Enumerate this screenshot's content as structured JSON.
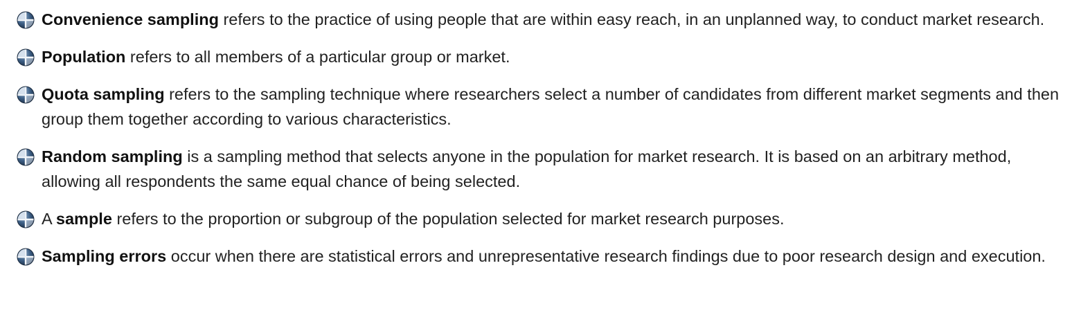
{
  "bullet_icon": "globe-bullet-icon",
  "entries": [
    {
      "prefix": "",
      "term": "Convenience sampling",
      "definition": " refers to the practice of using people that are within easy reach, in an unplanned way, to conduct market research."
    },
    {
      "prefix": "",
      "term": "Population",
      "definition": " refers to all members of a particular group or market."
    },
    {
      "prefix": "",
      "term": "Quota sampling",
      "definition": " refers to the sampling technique where researchers select a number of candidates from different market segments and then group them together according to various characteristics."
    },
    {
      "prefix": "",
      "term": "Random sampling",
      "definition": " is a sampling method that selects anyone in the population for market research. It is based on an arbitrary method, allowing all respondents the same equal chance of being selected."
    },
    {
      "prefix": "A ",
      "term": "sample",
      "definition": " refers to the proportion or subgroup of the population selected for market research purposes."
    },
    {
      "prefix": "",
      "term": "Sampling errors",
      "definition": " occur when there are statistical errors and unrepresentative research findings due to poor research design and execution."
    }
  ]
}
